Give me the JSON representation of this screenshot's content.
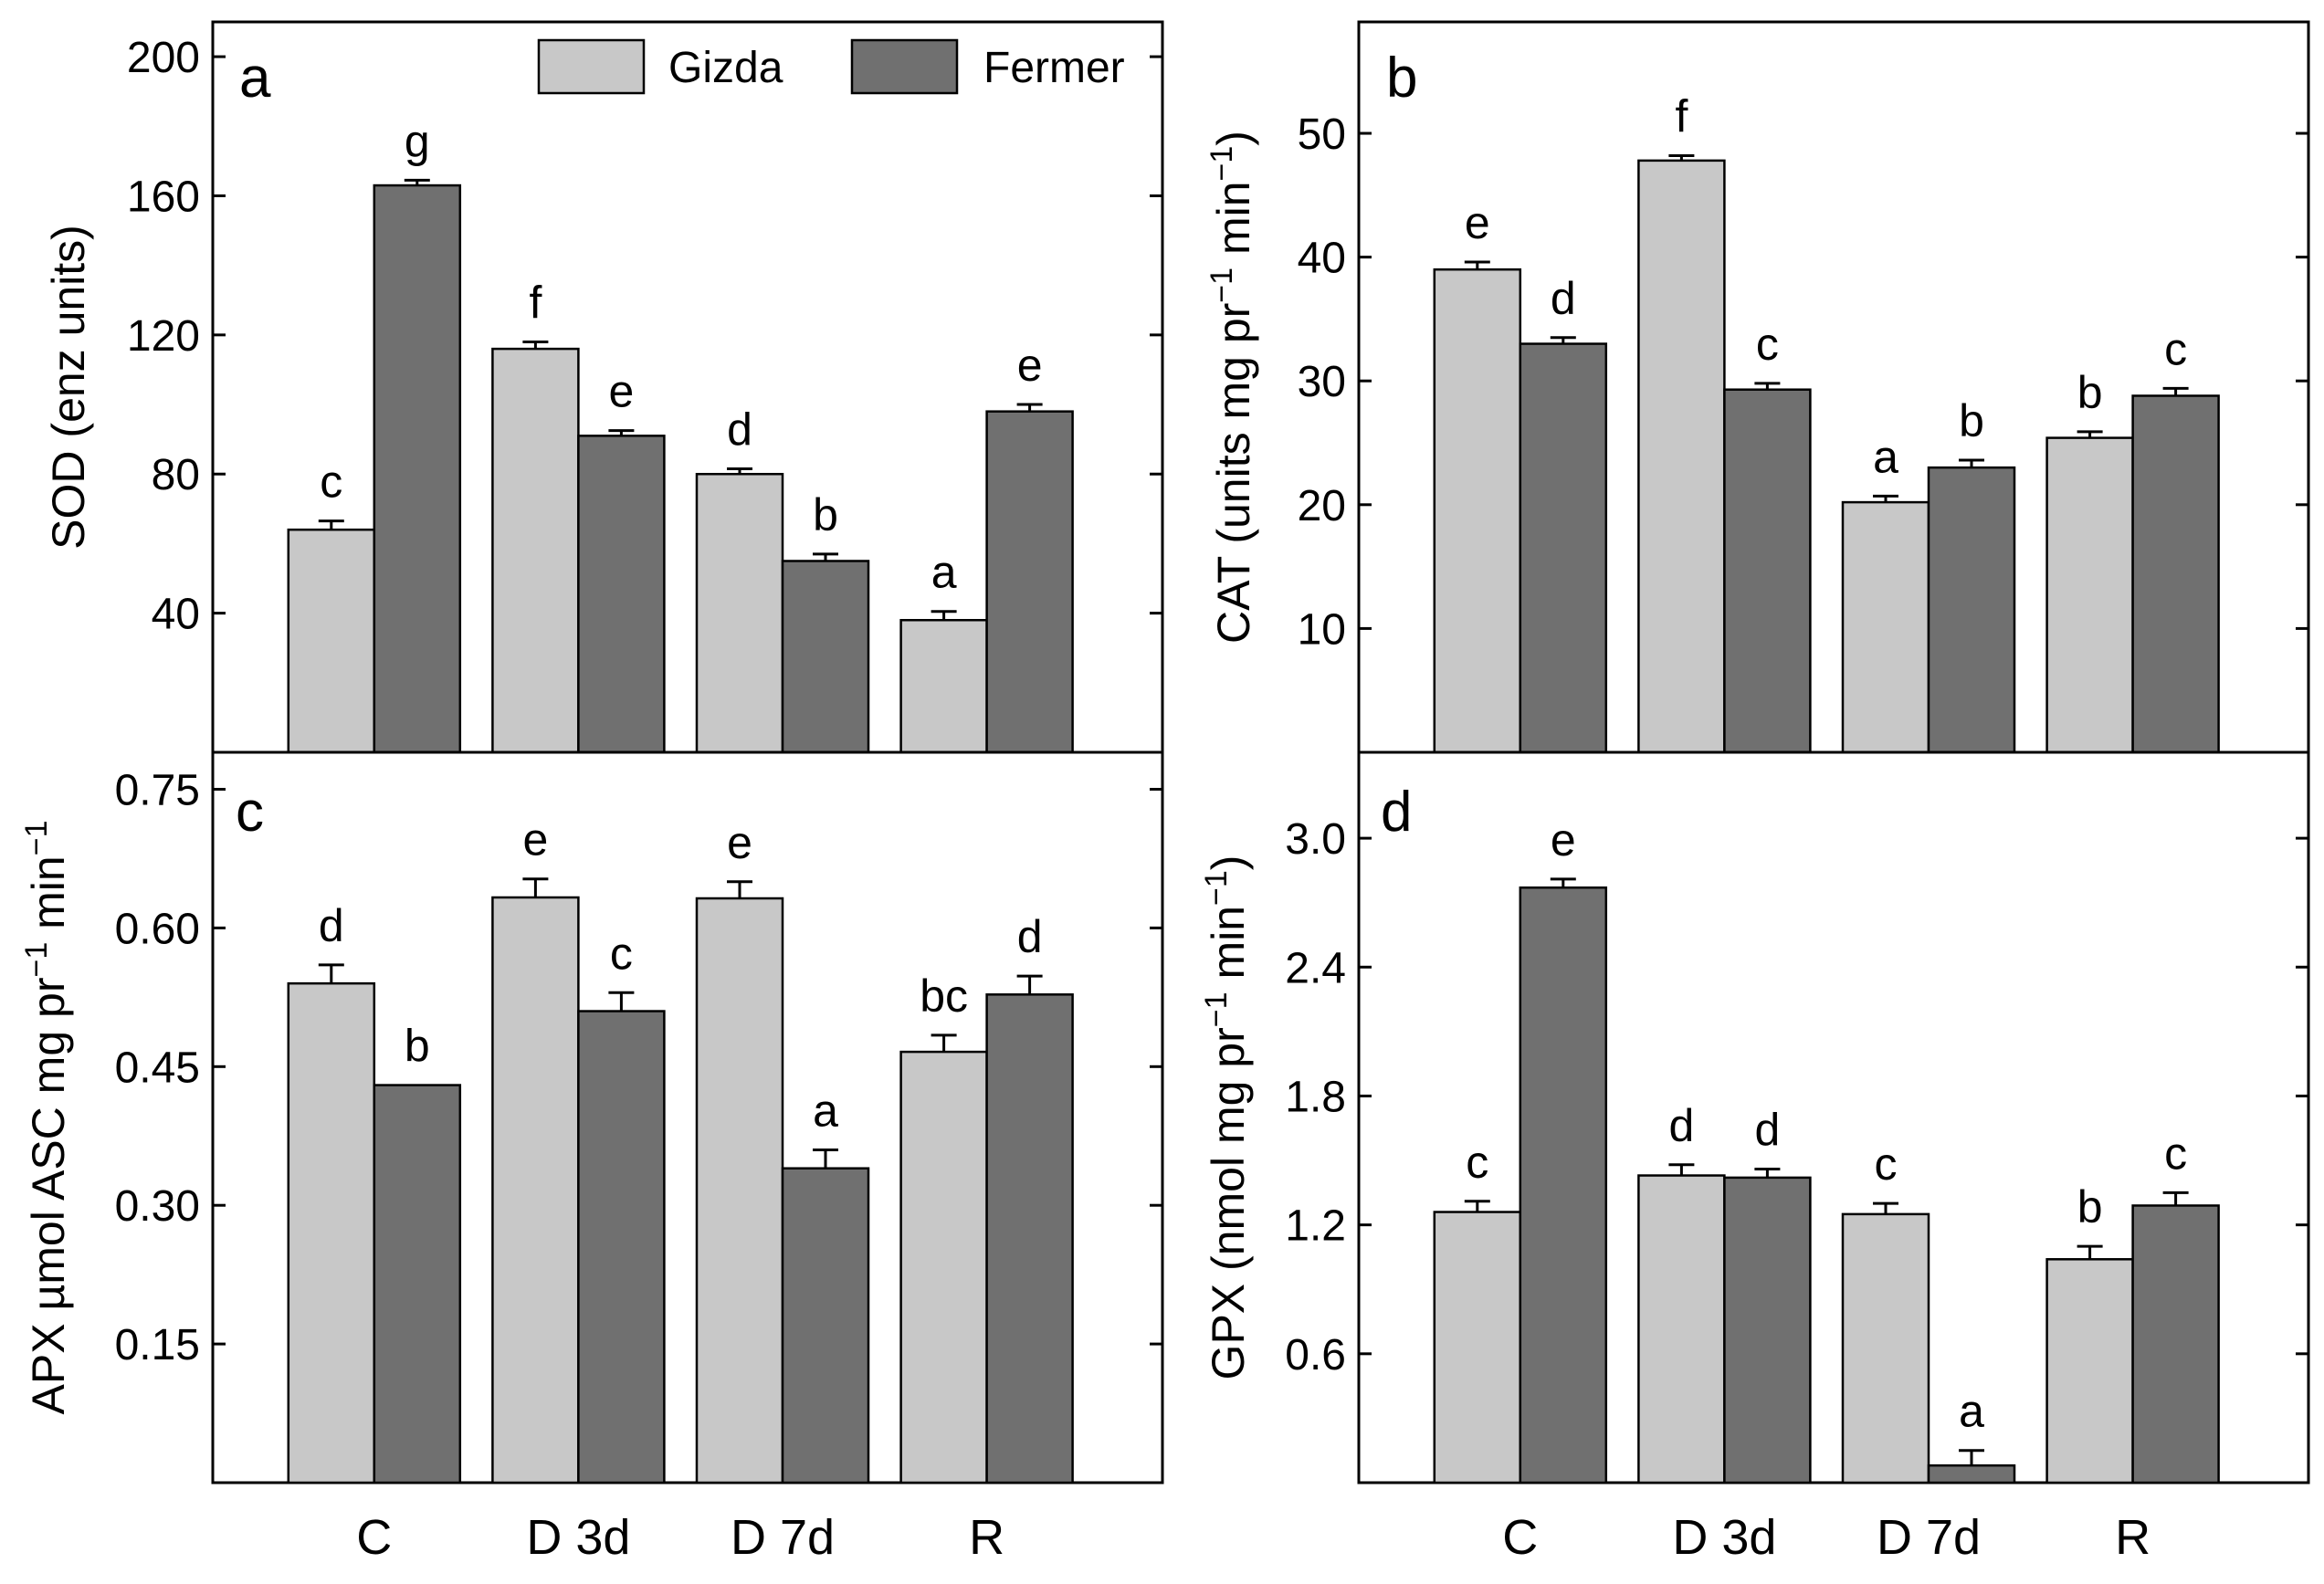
{
  "legend": {
    "series": [
      {
        "name": "Gizda",
        "color": "#c8c8c8"
      },
      {
        "name": "Fermer",
        "color": "#707070"
      }
    ]
  },
  "chart_data": [
    {
      "type": "bar",
      "panel": "a",
      "title": "",
      "ylabel": "SOD (enz units)",
      "ylabel_parts": [
        {
          "text": "SOD (enz units)"
        }
      ],
      "categories": [
        "C",
        "D 3d",
        "D 7d",
        "R"
      ],
      "ylim": [
        0,
        210
      ],
      "yticks": [
        40,
        80,
        120,
        160,
        200
      ],
      "ytick_labels": [
        "40",
        "80",
        "120",
        "160",
        "200"
      ],
      "show_x_labels": false,
      "series": [
        {
          "name": "Gizda",
          "values": [
            64,
            116,
            80,
            38
          ],
          "errors": [
            2.5,
            2.0,
            1.5,
            2.5
          ],
          "letters": [
            "c",
            "f",
            "d",
            "a"
          ]
        },
        {
          "name": "Fermer",
          "values": [
            163,
            91,
            55,
            98
          ],
          "errors": [
            1.5,
            1.5,
            2.0,
            2.0
          ],
          "letters": [
            "g",
            "e",
            "b",
            "e"
          ]
        }
      ]
    },
    {
      "type": "bar",
      "panel": "b",
      "title": "",
      "ylabel": "CAT (units mg pr-1 min-1)",
      "ylabel_parts": [
        {
          "text": "CAT (units mg pr"
        },
        {
          "text": "−1",
          "sup": true
        },
        {
          "text": " min"
        },
        {
          "text": "−1",
          "sup": true
        },
        {
          "text": ")"
        }
      ],
      "categories": [
        "C",
        "D 3d",
        "D 7d",
        "R"
      ],
      "ylim": [
        0,
        59
      ],
      "yticks": [
        10,
        20,
        30,
        40,
        50
      ],
      "ytick_labels": [
        "10",
        "20",
        "30",
        "40",
        "50"
      ],
      "show_x_labels": false,
      "series": [
        {
          "name": "Gizda",
          "values": [
            39,
            47.8,
            20.2,
            25.4
          ],
          "errors": [
            0.6,
            0.4,
            0.5,
            0.5
          ],
          "letters": [
            "e",
            "f",
            "a",
            "b"
          ]
        },
        {
          "name": "Fermer",
          "values": [
            33,
            29.3,
            23,
            28.8
          ],
          "errors": [
            0.5,
            0.5,
            0.6,
            0.6
          ],
          "letters": [
            "d",
            "c",
            "b",
            "c"
          ]
        }
      ]
    },
    {
      "type": "bar",
      "panel": "c",
      "title": "",
      "ylabel": "APX µmol ASC mg pr-1 min-1",
      "ylabel_parts": [
        {
          "text": "APX µmol ASC mg pr"
        },
        {
          "text": "−1",
          "sup": true
        },
        {
          "text": " min"
        },
        {
          "text": "−1",
          "sup": true
        }
      ],
      "categories": [
        "C",
        "D 3d",
        "D 7d",
        "R"
      ],
      "ylim": [
        0,
        0.79
      ],
      "yticks": [
        0.15,
        0.3,
        0.45,
        0.6,
        0.75
      ],
      "ytick_labels": [
        "0.15",
        "0.30",
        "0.45",
        "0.60",
        "0.75"
      ],
      "show_x_labels": true,
      "series": [
        {
          "name": "Gizda",
          "values": [
            0.54,
            0.633,
            0.632,
            0.466
          ],
          "errors": [
            0.02,
            0.02,
            0.018,
            0.018
          ],
          "letters": [
            "d",
            "e",
            "e",
            "bc"
          ]
        },
        {
          "name": "Fermer",
          "values": [
            0.43,
            0.51,
            0.34,
            0.528
          ],
          "errors": [
            0.0,
            0.02,
            0.02,
            0.02
          ],
          "letters": [
            "b",
            "c",
            "a",
            "d"
          ]
        }
      ]
    },
    {
      "type": "bar",
      "panel": "d",
      "title": "",
      "ylabel": "GPX (nmol mg pr-1 min-1)",
      "ylabel_parts": [
        {
          "text": "GPX (nmol mg pr"
        },
        {
          "text": "−1",
          "sup": true
        },
        {
          "text": " min"
        },
        {
          "text": "−1",
          "sup": true
        },
        {
          "text": ")"
        }
      ],
      "categories": [
        "C",
        "D 3d",
        "D 7d",
        "R"
      ],
      "ylim": [
        0,
        3.4
      ],
      "yticks": [
        0.6,
        1.2,
        1.8,
        2.4,
        3.0
      ],
      "ytick_labels": [
        "0.6",
        "1.2",
        "1.8",
        "2.4",
        "3.0"
      ],
      "show_x_labels": true,
      "series": [
        {
          "name": "Gizda",
          "values": [
            1.26,
            1.43,
            1.25,
            1.04
          ],
          "errors": [
            0.05,
            0.05,
            0.05,
            0.06
          ],
          "letters": [
            "c",
            "d",
            "c",
            "b"
          ]
        },
        {
          "name": "Fermer",
          "values": [
            2.77,
            1.42,
            0.08,
            1.29
          ],
          "errors": [
            0.04,
            0.04,
            0.07,
            0.06
          ],
          "letters": [
            "e",
            "d",
            "a",
            "c"
          ]
        }
      ]
    }
  ]
}
